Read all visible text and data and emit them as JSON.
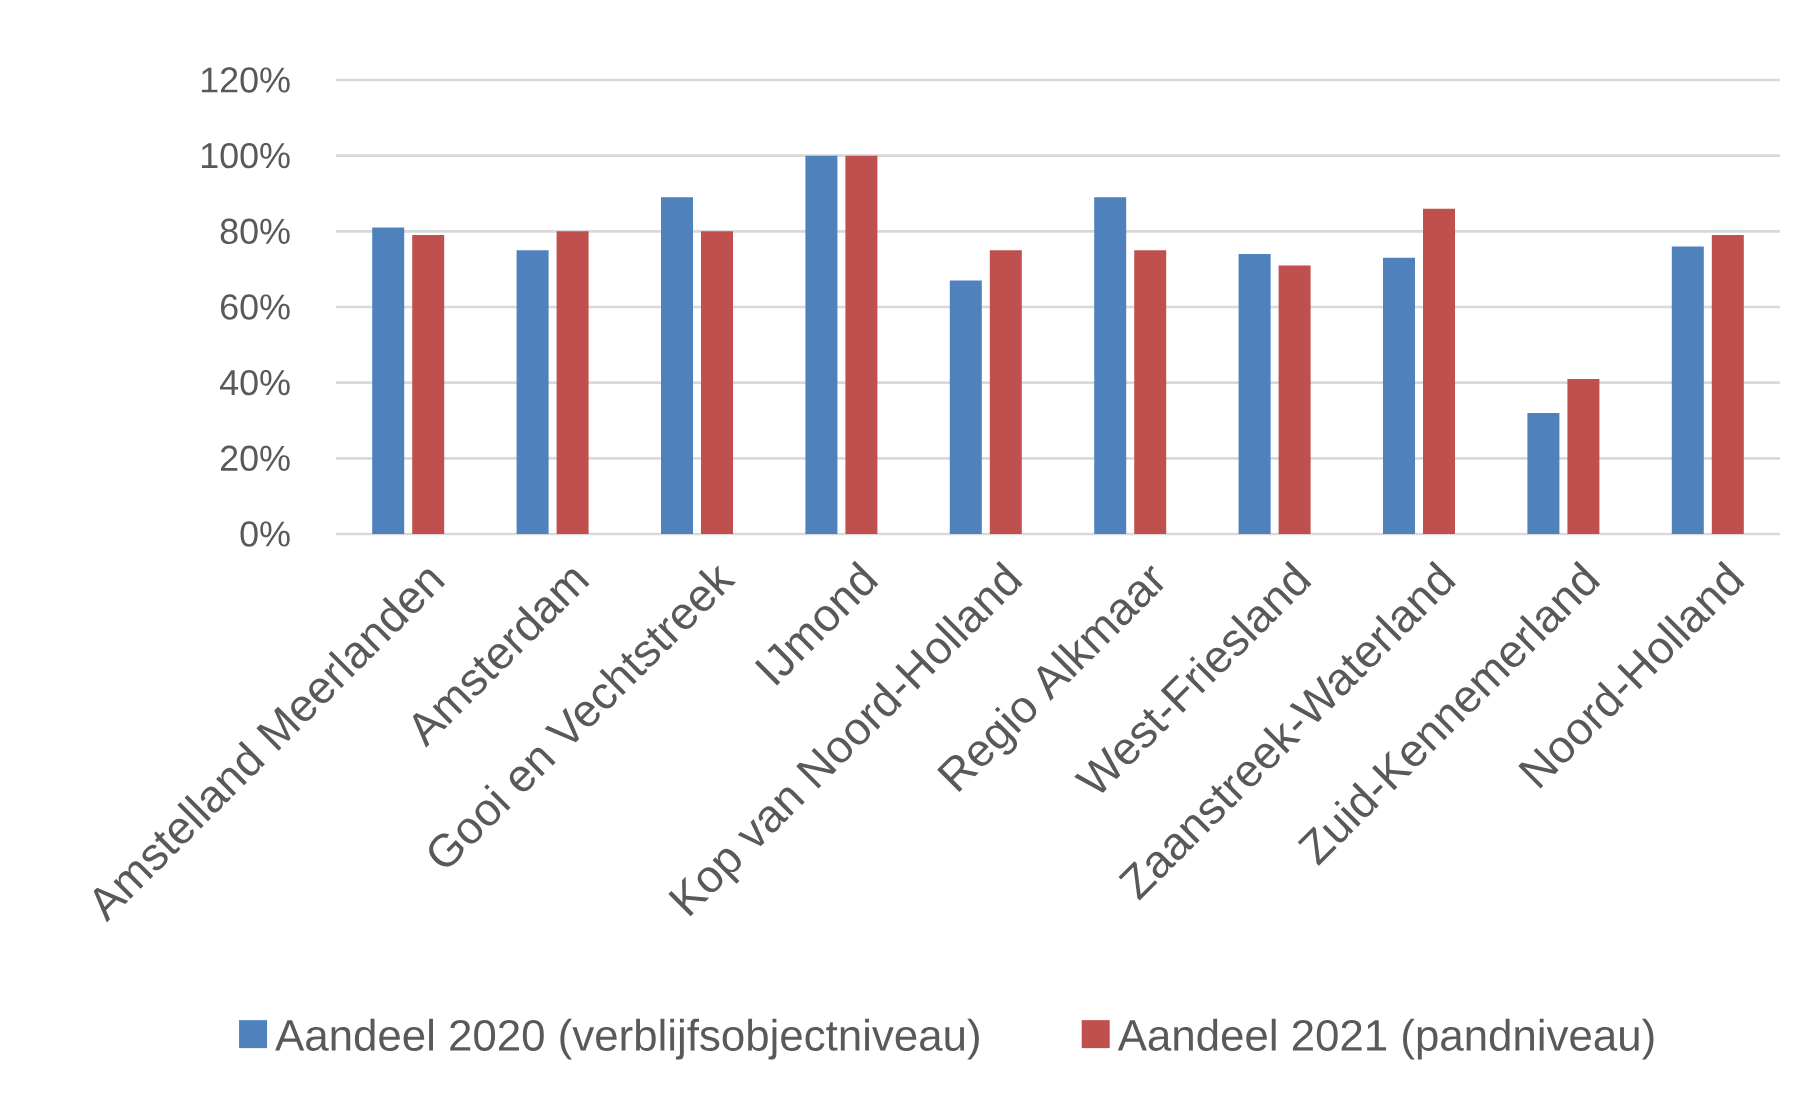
{
  "chart_data": {
    "type": "bar",
    "categories": [
      "Amstelland Meerlanden",
      "Amsterdam",
      "Gooi en Vechtstreek",
      "IJmond",
      "Kop van Noord-Holland",
      "Regio Alkmaar",
      "West-Friesland",
      "Zaanstreek-Waterland",
      "Zuid-Kennemerland",
      "Noord-Holland"
    ],
    "series": [
      {
        "name": "Aandeel 2020 (verblijfsobjectniveau)",
        "color": "#4f81bd",
        "values": [
          81,
          75,
          89,
          100,
          67,
          89,
          74,
          73,
          32,
          76
        ]
      },
      {
        "name": "Aandeel 2021 (pandniveau)",
        "color": "#c0504d",
        "values": [
          79,
          80,
          80,
          100,
          75,
          75,
          71,
          86,
          41,
          79
        ]
      }
    ],
    "ylim": [
      0,
      120
    ],
    "yticks": [
      {
        "value": 0,
        "label": "0%"
      },
      {
        "value": 20,
        "label": "20%"
      },
      {
        "value": 40,
        "label": "40%"
      },
      {
        "value": 60,
        "label": "60%"
      },
      {
        "value": 80,
        "label": "80%"
      },
      {
        "value": 100,
        "label": "100%"
      },
      {
        "value": 120,
        "label": "120%"
      }
    ],
    "grid": "y",
    "legend": "bottom"
  }
}
